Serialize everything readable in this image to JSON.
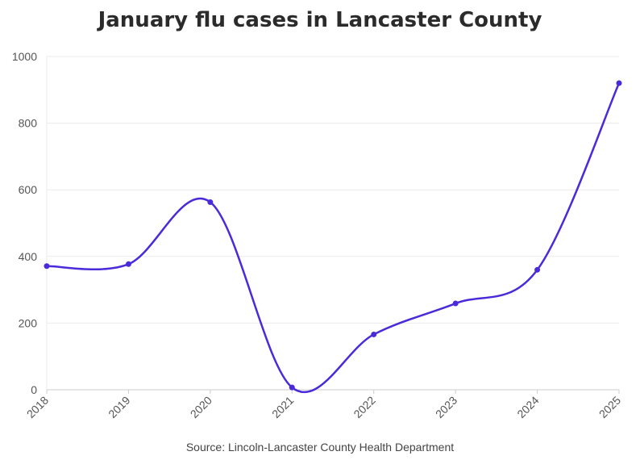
{
  "chart_data": {
    "type": "line",
    "title": "January flu cases in Lancaster County",
    "source": "Source: Lincoln-Lancaster County Health Department",
    "xlabel": "",
    "ylabel": "",
    "x": [
      "2018",
      "2019",
      "2020",
      "2021",
      "2022",
      "2023",
      "2024",
      "2025"
    ],
    "series": [
      {
        "values": [
          371,
          377,
          563,
          7,
          166,
          259,
          360,
          920
        ]
      }
    ],
    "ylim": [
      0,
      1000
    ],
    "yticks": [
      "0",
      "200",
      "400",
      "600",
      "800",
      "1000"
    ],
    "grid": true,
    "line_color": "#4b2bd9",
    "grid_color": "#ebebeb",
    "axis_color": "#cccccc"
  }
}
